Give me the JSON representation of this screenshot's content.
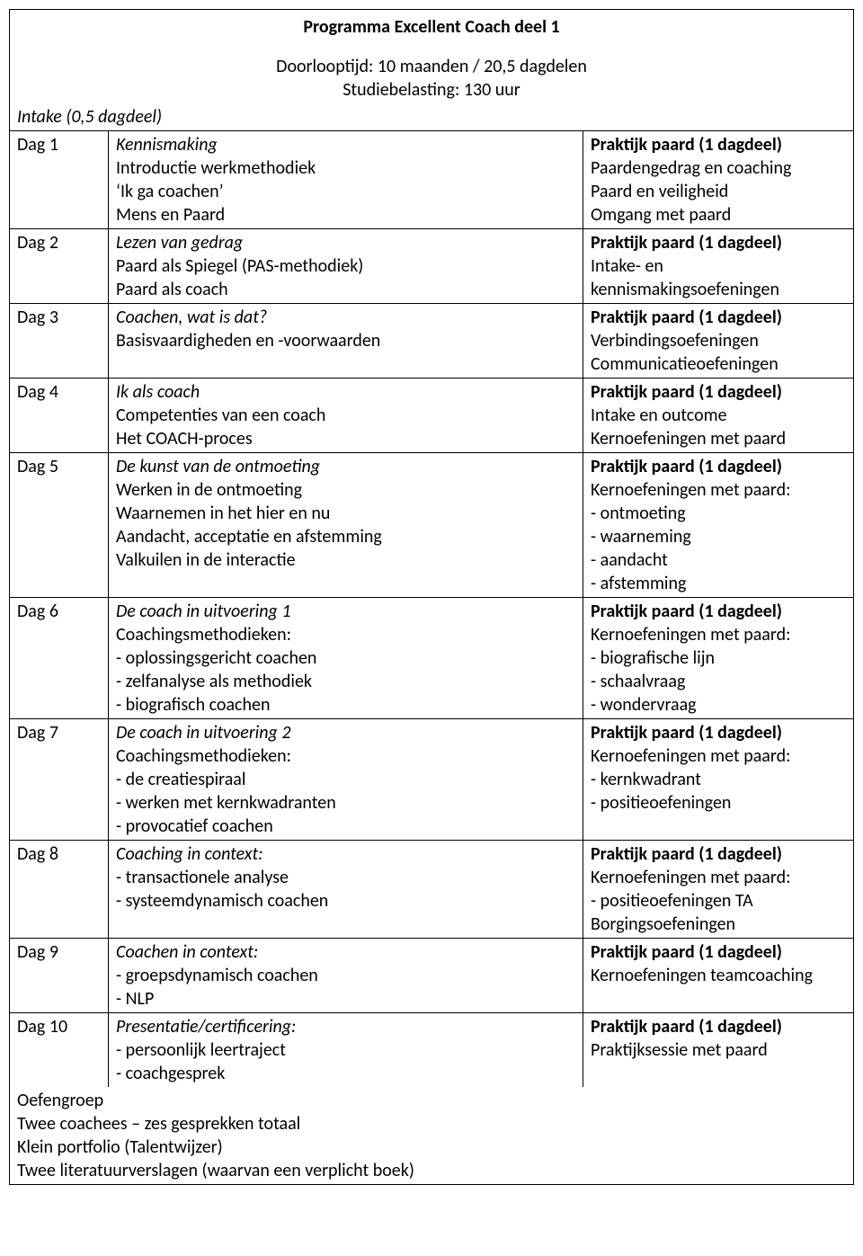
{
  "header": {
    "title": "Programma Excellent Coach deel 1",
    "line1": "Doorlooptijd: 10 maanden / 20,5 dagdelen",
    "line2": "Studiebelasting: 130 uur"
  },
  "intake": "Intake (0,5 dagdeel)",
  "days": [
    {
      "label": "Dag 1",
      "mid": [
        {
          "t": "Kennismaking",
          "i": true
        },
        {
          "t": "Introductie werkmethodiek"
        },
        {
          "t": "‘Ik ga coachen’"
        },
        {
          "t": "Mens en Paard"
        }
      ],
      "right": [
        {
          "t": "Praktijk paard (1 dagdeel)",
          "b": true
        },
        {
          "t": "Paardengedrag en coaching"
        },
        {
          "t": "Paard en veiligheid"
        },
        {
          "t": "Omgang met paard"
        }
      ]
    },
    {
      "label": "Dag 2",
      "mid": [
        {
          "t": "Lezen van gedrag",
          "i": true
        },
        {
          "t": "Paard als Spiegel (PAS-methodiek)"
        },
        {
          "t": "Paard als coach"
        }
      ],
      "right": [
        {
          "t": "Praktijk paard (1 dagdeel)",
          "b": true
        },
        {
          "t": "Intake- en kennismakingsoefeningen"
        }
      ]
    },
    {
      "label": "Dag 3",
      "mid": [
        {
          "t": "Coachen, wat is dat?",
          "i": true
        },
        {
          "t": "Basisvaardigheden en -voorwaarden"
        }
      ],
      "right": [
        {
          "t": "Praktijk paard (1 dagdeel)",
          "b": true
        },
        {
          "t": "Verbindingsoefeningen"
        },
        {
          "t": "Communicatieoefeningen"
        }
      ]
    },
    {
      "label": "Dag 4",
      "mid": [
        {
          "t": "Ik als coach",
          "i": true
        },
        {
          "t": "Competenties van een coach"
        },
        {
          "t": "Het COACH-proces"
        }
      ],
      "right": [
        {
          "t": "Praktijk paard (1 dagdeel)",
          "b": true
        },
        {
          "t": "Intake en outcome"
        },
        {
          "t": "Kernoefeningen met paard"
        }
      ]
    },
    {
      "label": "Dag 5",
      "mid": [
        {
          "t": "De kunst van de ontmoeting",
          "i": true
        },
        {
          "t": "Werken in de ontmoeting"
        },
        {
          "t": "Waarnemen in het hier en nu"
        },
        {
          "t": "Aandacht, acceptatie en afstemming"
        },
        {
          "t": "Valkuilen in de interactie"
        }
      ],
      "right": [
        {
          "t": "Praktijk paard (1 dagdeel)",
          "b": true
        },
        {
          "t": "Kernoefeningen met paard:"
        },
        {
          "t": "- ontmoeting"
        },
        {
          "t": "- waarneming"
        },
        {
          "t": "- aandacht"
        },
        {
          "t": "- afstemming"
        }
      ]
    },
    {
      "label": "Dag 6",
      "mid": [
        {
          "t": "De coach in uitvoering 1",
          "i": true
        },
        {
          "t": "Coachingsmethodieken:"
        },
        {
          "t": "- oplossingsgericht coachen"
        },
        {
          "t": "- zelfanalyse als methodiek"
        },
        {
          "t": "- biografisch coachen"
        }
      ],
      "right": [
        {
          "t": "Praktijk paard (1 dagdeel)",
          "b": true
        },
        {
          "t": "Kernoefeningen met paard:"
        },
        {
          "t": "- biografische lijn"
        },
        {
          "t": "- schaalvraag"
        },
        {
          "t": "- wondervraag"
        }
      ]
    },
    {
      "label": "Dag 7",
      "mid": [
        {
          "t": "De coach in uitvoering 2",
          "i": true
        },
        {
          "t": "Coachingsmethodieken:"
        },
        {
          "t": "- de creatiespiraal"
        },
        {
          "t": "- werken met kernkwadranten"
        },
        {
          "t": "- provocatief coachen"
        }
      ],
      "right": [
        {
          "t": "Praktijk paard (1 dagdeel)",
          "b": true
        },
        {
          "t": "Kernoefeningen met paard:"
        },
        {
          "t": "- kernkwadrant"
        },
        {
          "t": "- positieoefeningen"
        }
      ]
    },
    {
      "label": "Dag 8",
      "mid": [
        {
          "t": "Coaching in context:",
          "i": true
        },
        {
          "t": "- transactionele analyse"
        },
        {
          "t": "- systeemdynamisch coachen"
        }
      ],
      "right": [
        {
          "t": "Praktijk paard (1 dagdeel)",
          "b": true
        },
        {
          "t": "Kernoefeningen met paard:"
        },
        {
          "t": "- positieoefeningen TA"
        },
        {
          "t": "Borgingsoefeningen"
        }
      ]
    },
    {
      "label": "Dag 9",
      "mid": [
        {
          "t": "Coachen in context:",
          "i": true
        },
        {
          "t": "- groepsdynamisch coachen"
        },
        {
          "t": "- NLP"
        }
      ],
      "right": [
        {
          "t": "Praktijk paard (1 dagdeel)",
          "b": true
        },
        {
          "t": "Kernoefeningen teamcoaching"
        }
      ]
    },
    {
      "label": "Dag 10",
      "mid": [
        {
          "t": "Presentatie/certificering:",
          "i": true
        },
        {
          "t": "- persoonlijk leertraject"
        },
        {
          "t": "- coachgesprek"
        }
      ],
      "right": [
        {
          "t": "Praktijk paard (1 dagdeel)",
          "b": true
        },
        {
          "t": "Praktijksessie met paard"
        }
      ]
    }
  ],
  "footer": [
    "Oefengroep",
    "Twee coachees – zes gesprekken totaal",
    "Klein portfolio (Talentwijzer)",
    "Twee literatuurverslagen (waarvan een verplicht boek)"
  ]
}
